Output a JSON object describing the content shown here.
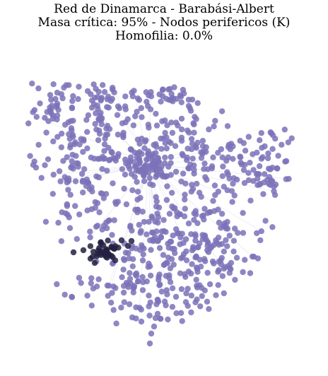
{
  "figure": {
    "title_lines": [
      "Red de Dinamarca - Barabási-Albert",
      "Masa crítica: 95% - Nodos perifericos (K)",
      "Homofilia: 0.0%"
    ]
  },
  "colors": {
    "background": "#ffffff",
    "node": "#7b72b8",
    "active_node": "#22213f",
    "edge": "#e4e2f0"
  },
  "network": {
    "model": "Barabási-Albert",
    "critical_mass_percent": 95,
    "homophily_percent": 0.0,
    "node_count_approx": 900
  }
}
